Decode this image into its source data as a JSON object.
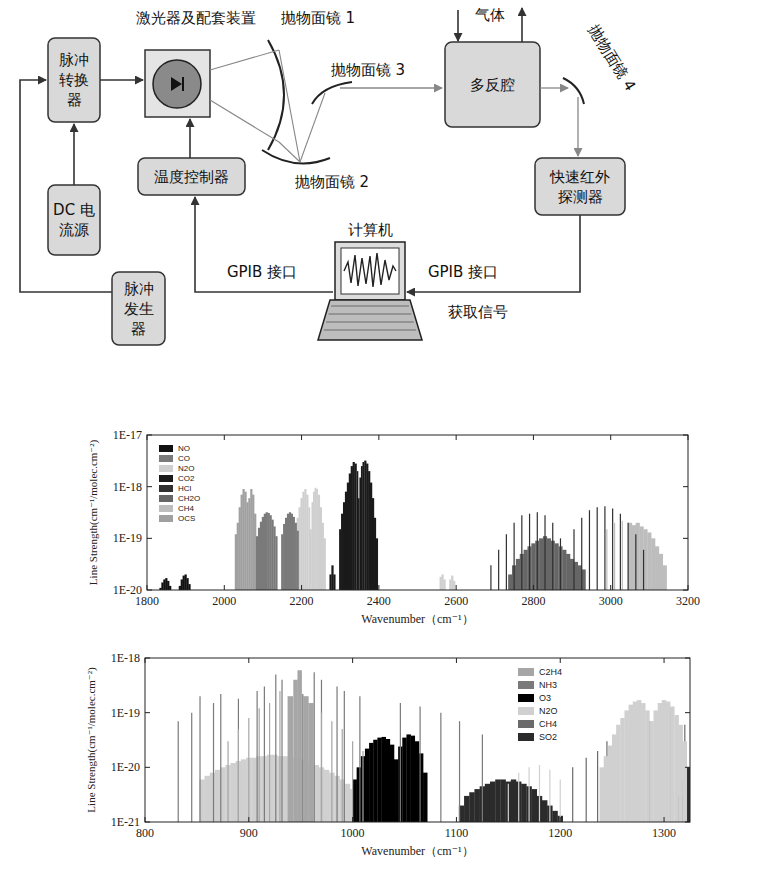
{
  "diagram": {
    "nodes": [
      {
        "lines": [
          "脉冲",
          "转换",
          "器"
        ]
      },
      {
        "lines": [
          "DC 电",
          "流源"
        ]
      },
      {
        "lines": [
          "脉冲",
          "发生",
          "器"
        ]
      },
      {
        "lines": [
          "温度控制器"
        ]
      },
      {
        "lines": [
          "多反腔"
        ]
      },
      {
        "lines": [
          "快速红外",
          "探测器"
        ]
      }
    ],
    "laser_label": "激光器及配套装置",
    "mirrors": [
      "抛物面镜 1",
      "抛物面镜 2",
      "抛物面镜 3",
      "抛物面镜 4"
    ],
    "gas_label": "气体",
    "computer_label": "计算机",
    "edge_labels": [
      "GPIB 接口",
      "GPIB 接口",
      "获取信号"
    ]
  },
  "chart_data": [
    {
      "type": "stem",
      "x_label": "Wavenumber（cm⁻¹）",
      "y_label": "Line Strength(cm⁻¹/molec.cm⁻²)",
      "log": "y",
      "grid": false,
      "legend": "top-left",
      "xlim": [
        1800,
        3200
      ],
      "xticks": [
        1800,
        2000,
        2200,
        2400,
        2600,
        2800,
        3000,
        3200
      ],
      "ylim": [
        1e-20,
        1e-17
      ],
      "yticks": [
        {
          "value": 1e-20,
          "label": "1E-20"
        },
        {
          "value": 1e-19,
          "label": "1E-19"
        },
        {
          "value": 1e-18,
          "label": "1E-18"
        },
        {
          "value": 1e-17,
          "label": "1E-17"
        }
      ],
      "series": [
        {
          "name": "NO",
          "color": "#111111",
          "x": [
            1835,
            1840,
            1845,
            1850,
            1855,
            1860,
            1885,
            1890,
            1895,
            1900,
            1905,
            1910
          ],
          "values": [
            1.1e-20,
            1.4e-20,
            1.6e-20,
            1.7e-20,
            1.5e-20,
            1.2e-20,
            1.2e-20,
            1.6e-20,
            1.9e-20,
            2e-20,
            1.7e-20,
            1.3e-20
          ]
        },
        {
          "name": "CO",
          "color": "#7a7a7a",
          "x": [
            2085,
            2090,
            2095,
            2100,
            2105,
            2110,
            2115,
            2120,
            2125,
            2130,
            2135,
            2150,
            2155,
            2160,
            2165,
            2170,
            2175,
            2180,
            2185,
            2190
          ],
          "values": [
            1.1e-19,
            1.6e-19,
            2.1e-19,
            2.6e-19,
            3e-19,
            3.2e-19,
            3.1e-19,
            2.8e-19,
            2.3e-19,
            1.7e-19,
            1.1e-19,
            1.2e-19,
            1.9e-19,
            2.5e-19,
            3e-19,
            3.2e-19,
            3e-19,
            2.6e-19,
            2e-19,
            1.4e-19
          ]
        },
        {
          "name": "N2O",
          "color": "#cfcfcf",
          "x": [
            2185,
            2190,
            2195,
            2200,
            2205,
            2210,
            2215,
            2220,
            2224,
            2228,
            2232,
            2236,
            2240,
            2245,
            2250,
            2255,
            2260,
            2560,
            2565,
            2570,
            2585,
            2590,
            2595
          ],
          "values": [
            1.5e-19,
            2.5e-19,
            4e-19,
            6e-19,
            8e-19,
            9e-19,
            7e-19,
            4e-19,
            1.5e-19,
            5e-19,
            8e-19,
            9.5e-19,
            9e-19,
            7e-19,
            4e-19,
            2e-19,
            1e-19,
            1.8e-20,
            2e-20,
            1.6e-20,
            1.6e-20,
            1.9e-20,
            1.5e-20
          ]
        },
        {
          "name": "CO2",
          "color": "#1a1a1a",
          "x": [
            2275,
            2280,
            2285,
            2300,
            2305,
            2310,
            2315,
            2320,
            2325,
            2330,
            2335,
            2340,
            2345,
            2348,
            2352,
            2356,
            2360,
            2365,
            2370,
            2375,
            2380,
            2385,
            2390,
            2395
          ],
          "values": [
            2e-20,
            3e-20,
            2e-20,
            1.5e-19,
            3e-19,
            5e-19,
            8e-19,
            1.2e-18,
            1.8e-18,
            2.5e-18,
            3e-18,
            2.8e-18,
            2e-18,
            6e-19,
            1.5e-18,
            2.5e-18,
            3e-18,
            3.2e-18,
            2.8e-18,
            2e-18,
            1.2e-18,
            6e-19,
            2.5e-19,
            1e-19
          ]
        },
        {
          "name": "HCl",
          "color": "#303030",
          "x": [
            2690,
            2710,
            2730,
            2750,
            2770,
            2790,
            2810,
            2830,
            2850,
            2870,
            2905,
            2925,
            2945,
            2965,
            2985,
            3005,
            3025,
            3045,
            3065,
            3085
          ],
          "values": [
            3e-20,
            6e-20,
            1.2e-19,
            2e-19,
            2.8e-19,
            3e-19,
            3.2e-19,
            2.8e-19,
            2e-19,
            1e-19,
            1.5e-19,
            2.5e-19,
            3.5e-19,
            4e-19,
            4.2e-19,
            3.8e-19,
            3e-19,
            2e-19,
            1.2e-19,
            6e-20
          ]
        },
        {
          "name": "CH2O",
          "color": "#666666",
          "x": [
            2740,
            2750,
            2760,
            2770,
            2780,
            2790,
            2800,
            2810,
            2820,
            2830,
            2840,
            2850,
            2860,
            2870,
            2880,
            2890,
            2900,
            2910,
            2920,
            2930
          ],
          "values": [
            2e-20,
            3e-20,
            4e-20,
            5e-20,
            6e-20,
            7e-20,
            8e-20,
            9e-20,
            1e-19,
            1.1e-19,
            1e-19,
            9e-20,
            8e-20,
            7e-20,
            6e-20,
            5e-20,
            4e-20,
            3.5e-20,
            3e-20,
            2.5e-20
          ]
        },
        {
          "name": "CH4",
          "color": "#bdbdbd",
          "x": [
            2990,
            3010,
            3030,
            3050,
            3060,
            3070,
            3080,
            3090,
            3100,
            3110,
            3120,
            3130,
            3140
          ],
          "values": [
            1.5e-19,
            2e-19,
            2.2e-19,
            2e-19,
            1.8e-19,
            2e-19,
            1.7e-19,
            1.5e-19,
            1.3e-19,
            1e-19,
            7e-20,
            5e-20,
            3e-20
          ]
        },
        {
          "name": "OCS",
          "color": "#a0a0a0",
          "x": [
            2030,
            2035,
            2040,
            2045,
            2050,
            2055,
            2060,
            2065,
            2070,
            2075,
            2080,
            2085
          ],
          "values": [
            1.2e-19,
            2e-19,
            4e-19,
            7e-19,
            9e-19,
            8e-19,
            5e-19,
            6e-19,
            9e-19,
            7e-19,
            3e-19,
            1e-19
          ]
        }
      ]
    },
    {
      "type": "stem",
      "x_label": "Wavenumber（cm⁻¹）",
      "y_label": "Line Strength(cm⁻¹/molec.cm⁻²)",
      "log": "y",
      "grid": false,
      "legend": "top-right",
      "xlim": [
        800,
        1325
      ],
      "xticks": [
        800,
        900,
        1000,
        1100,
        1200,
        1300
      ],
      "ylim": [
        1e-21,
        1e-18
      ],
      "yticks": [
        {
          "value": 1e-21,
          "label": "1E-21"
        },
        {
          "value": 1e-20,
          "label": "1E-20"
        },
        {
          "value": 1e-19,
          "label": "1E-19"
        },
        {
          "value": 1e-18,
          "label": "1E-18"
        }
      ],
      "series": [
        {
          "name": "C2H4",
          "color": "#a6a6a6",
          "x": [
            880,
            890,
            900,
            910,
            920,
            930,
            940,
            945,
            949,
            955,
            960,
            970,
            980,
            990,
            1000,
            1010
          ],
          "values": [
            3e-20,
            5e-20,
            8e-20,
            1.2e-19,
            1.5e-19,
            2.5e-19,
            2e-19,
            4e-19,
            6e-19,
            2e-19,
            1.5e-19,
            1e-19,
            7e-20,
            5e-20,
            3e-20,
            2e-20
          ]
        },
        {
          "name": "NH3",
          "color": "#7a7a7a",
          "x": [
            832,
            845,
            853,
            866,
            873,
            890,
            908,
            915,
            926,
            932,
            946,
            952,
            963,
            970,
            985,
            992,
            1007,
            1046,
            1065,
            1085,
            1103,
            1125
          ],
          "values": [
            7e-20,
            1e-19,
            2e-19,
            1.5e-19,
            2.2e-19,
            1.8e-19,
            2.5e-19,
            3e-19,
            5e-19,
            4e-19,
            3e-19,
            2.2e-19,
            5.5e-19,
            4e-19,
            3e-19,
            2.5e-19,
            2e-19,
            1.5e-19,
            1.3e-19,
            1e-19,
            7e-20,
            4e-20
          ]
        },
        {
          "name": "O3",
          "color": "#000000",
          "x": [
            1002,
            1006,
            1010,
            1014,
            1018,
            1022,
            1026,
            1030,
            1034,
            1038,
            1042,
            1046,
            1050,
            1054,
            1058,
            1062,
            1066,
            1070
          ],
          "values": [
            6e-21,
            1e-20,
            1.6e-20,
            2.2e-20,
            2.8e-20,
            3.2e-20,
            3.5e-20,
            3.6e-20,
            3.3e-20,
            2.6e-20,
            1.4e-20,
            2.4e-20,
            3.5e-20,
            4e-20,
            3.8e-20,
            3e-20,
            1.8e-20,
            8e-21
          ]
        },
        {
          "name": "N2O",
          "color": "#d0d0d0",
          "x": [
            855,
            860,
            865,
            870,
            875,
            880,
            885,
            890,
            895,
            900,
            905,
            910,
            915,
            920,
            925,
            930,
            935,
            940,
            945,
            950,
            955,
            960,
            965,
            970,
            975,
            980,
            985,
            990,
            995,
            1000,
            1150,
            1160,
            1170,
            1180,
            1190,
            1200,
            1240,
            1244,
            1248,
            1252,
            1256,
            1260,
            1264,
            1268,
            1272,
            1276,
            1280,
            1284,
            1288,
            1292,
            1296,
            1300,
            1304,
            1308,
            1312,
            1316,
            1320
          ],
          "values": [
            6e-21,
            7e-21,
            8e-21,
            9e-21,
            1e-20,
            1.1e-20,
            1.2e-20,
            1.3e-20,
            1.4e-20,
            1.5e-20,
            1.5e-20,
            1.6e-20,
            1.6e-20,
            1.7e-20,
            1.7e-20,
            1.6e-20,
            1.6e-20,
            1.5e-20,
            1.5e-20,
            1.4e-20,
            1.3e-20,
            1.2e-20,
            1.1e-20,
            1e-20,
            9e-21,
            8e-21,
            7e-21,
            6e-21,
            5e-21,
            4e-21,
            5e-21,
            8e-21,
            1e-20,
            1.1e-20,
            9e-21,
            6e-21,
            1e-20,
            1.6e-20,
            2.5e-20,
            4e-20,
            6e-20,
            8e-20,
            1.1e-19,
            1.4e-19,
            1.6e-19,
            1.7e-19,
            1.5e-19,
            1.1e-19,
            7e-20,
            1.1e-19,
            1.5e-19,
            1.7e-19,
            1.6e-19,
            1.3e-19,
            9e-20,
            6e-20,
            3e-20
          ]
        },
        {
          "name": "CH4",
          "color": "#6a6a6a",
          "x": [
            1212,
            1225,
            1236,
            1245,
            1255,
            1265,
            1276,
            1286,
            1299,
            1306,
            1313,
            1320
          ],
          "values": [
            1e-20,
            1.5e-20,
            2e-20,
            3e-20,
            4e-20,
            5e-20,
            6e-20,
            7e-20,
            8e-20,
            1.2e-19,
            9e-20,
            6e-20
          ]
        },
        {
          "name": "SO2",
          "color": "#2b2b2b",
          "x": [
            1105,
            1110,
            1115,
            1120,
            1125,
            1130,
            1135,
            1140,
            1145,
            1150,
            1155,
            1160,
            1165,
            1170,
            1175,
            1180,
            1185,
            1190,
            1195,
            1200,
            1316,
            1320,
            1324
          ],
          "values": [
            2e-21,
            3e-21,
            3.5e-21,
            4e-21,
            4.5e-21,
            5e-21,
            5.5e-21,
            6e-21,
            6e-21,
            5.5e-21,
            6e-21,
            5.5e-21,
            5e-21,
            4.5e-21,
            4e-21,
            3e-21,
            2.5e-21,
            2e-21,
            1.6e-21,
            1.3e-21,
            3e-21,
            6e-21,
            1e-20
          ]
        }
      ]
    }
  ]
}
